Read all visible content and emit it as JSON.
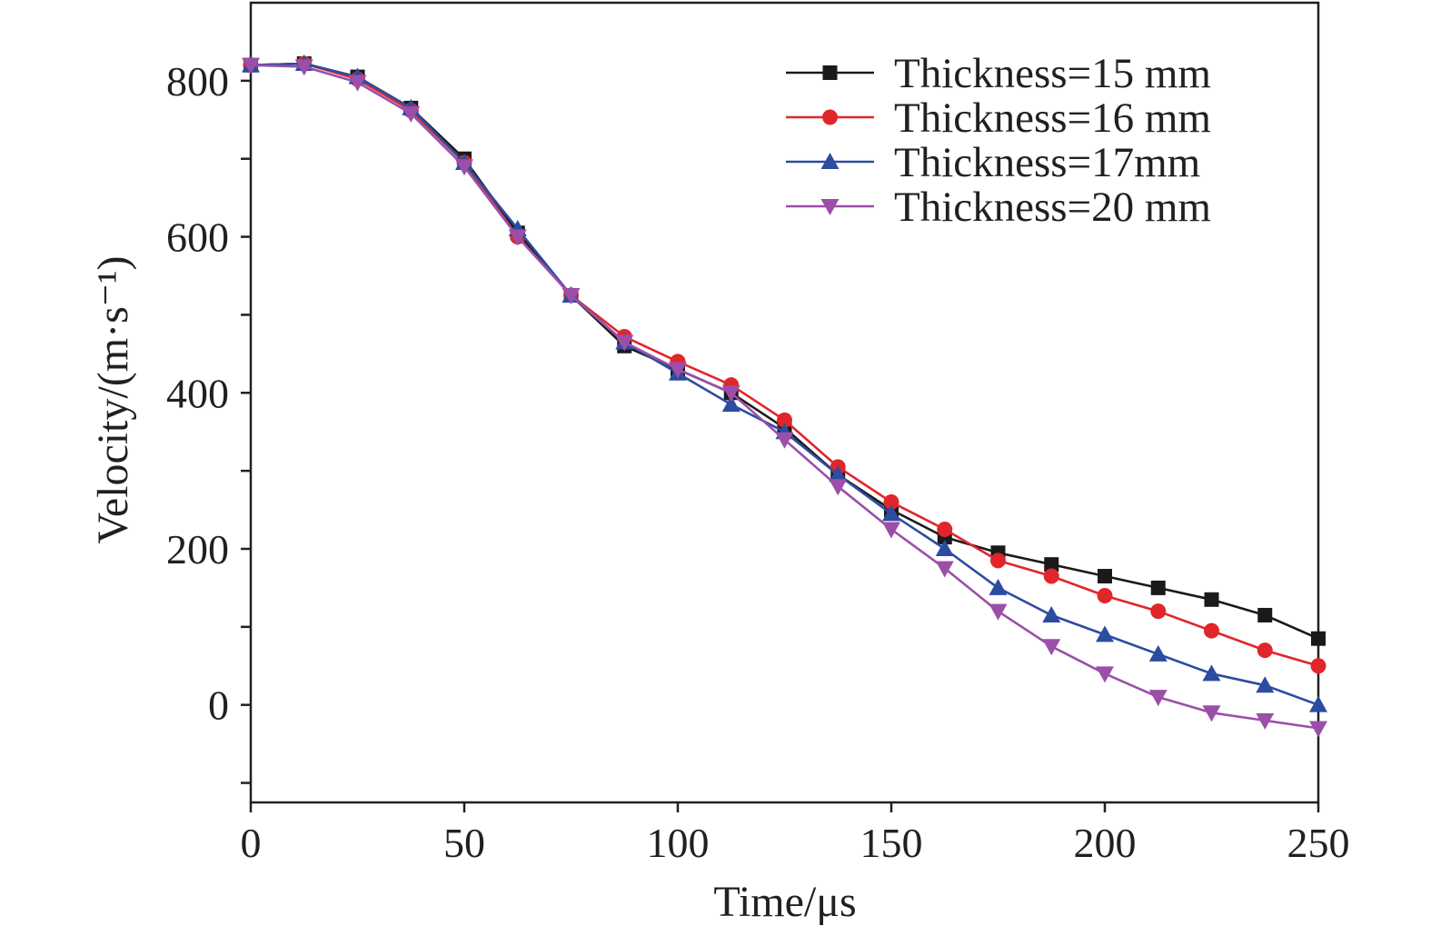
{
  "chart_data": {
    "type": "line",
    "xlabel": "Time/μs",
    "ylabel": "Velocity/(m·s⁻¹)",
    "xlim": [
      0,
      250
    ],
    "ylim": [
      -125,
      900
    ],
    "xticks": [
      0,
      50,
      100,
      150,
      200,
      250
    ],
    "yticks_labeled": [
      0,
      200,
      400,
      600,
      800
    ],
    "yticks_minor": [
      -100,
      100,
      300,
      500,
      700
    ],
    "grid": false,
    "legend_position": "top-right",
    "series": [
      {
        "name": "Thickness=15 mm",
        "color": "#1a1a1a",
        "marker": "square",
        "x": [
          0,
          12.5,
          25,
          37.5,
          50,
          62.5,
          75,
          87.5,
          100,
          112.5,
          125,
          137.5,
          150,
          162.5,
          175,
          187.5,
          200,
          212.5,
          225,
          237.5,
          250
        ],
        "y": [
          820,
          822,
          805,
          765,
          700,
          605,
          525,
          460,
          430,
          400,
          355,
          295,
          250,
          215,
          195,
          180,
          165,
          150,
          135,
          115,
          85
        ]
      },
      {
        "name": "Thickness=16 mm",
        "color": "#e0262b",
        "marker": "circle",
        "x": [
          0,
          12.5,
          25,
          37.5,
          50,
          62.5,
          75,
          87.5,
          100,
          112.5,
          125,
          137.5,
          150,
          162.5,
          175,
          187.5,
          200,
          212.5,
          225,
          237.5,
          250
        ],
        "y": [
          820,
          822,
          802,
          762,
          695,
          600,
          525,
          472,
          440,
          410,
          365,
          305,
          260,
          225,
          185,
          165,
          140,
          120,
          95,
          70,
          50
        ]
      },
      {
        "name": "Thickness=17mm",
        "color": "#2c4ca0",
        "marker": "triangle-up",
        "x": [
          0,
          12.5,
          25,
          37.5,
          50,
          62.5,
          75,
          87.5,
          100,
          112.5,
          125,
          137.5,
          150,
          162.5,
          175,
          187.5,
          200,
          212.5,
          225,
          237.5,
          250
        ],
        "y": [
          820,
          822,
          805,
          765,
          695,
          610,
          525,
          465,
          425,
          385,
          350,
          295,
          245,
          200,
          150,
          115,
          90,
          65,
          40,
          25,
          0
        ]
      },
      {
        "name": "Thickness=20 mm",
        "color": "#9b4fa8",
        "marker": "triangle-down",
        "x": [
          0,
          12.5,
          25,
          37.5,
          50,
          62.5,
          75,
          87.5,
          100,
          112.5,
          125,
          137.5,
          150,
          162.5,
          175,
          187.5,
          200,
          212.5,
          225,
          237.5,
          250
        ],
        "y": [
          820,
          818,
          798,
          758,
          690,
          600,
          525,
          465,
          430,
          400,
          340,
          280,
          225,
          175,
          120,
          75,
          40,
          10,
          -10,
          -20,
          -30
        ]
      }
    ]
  }
}
